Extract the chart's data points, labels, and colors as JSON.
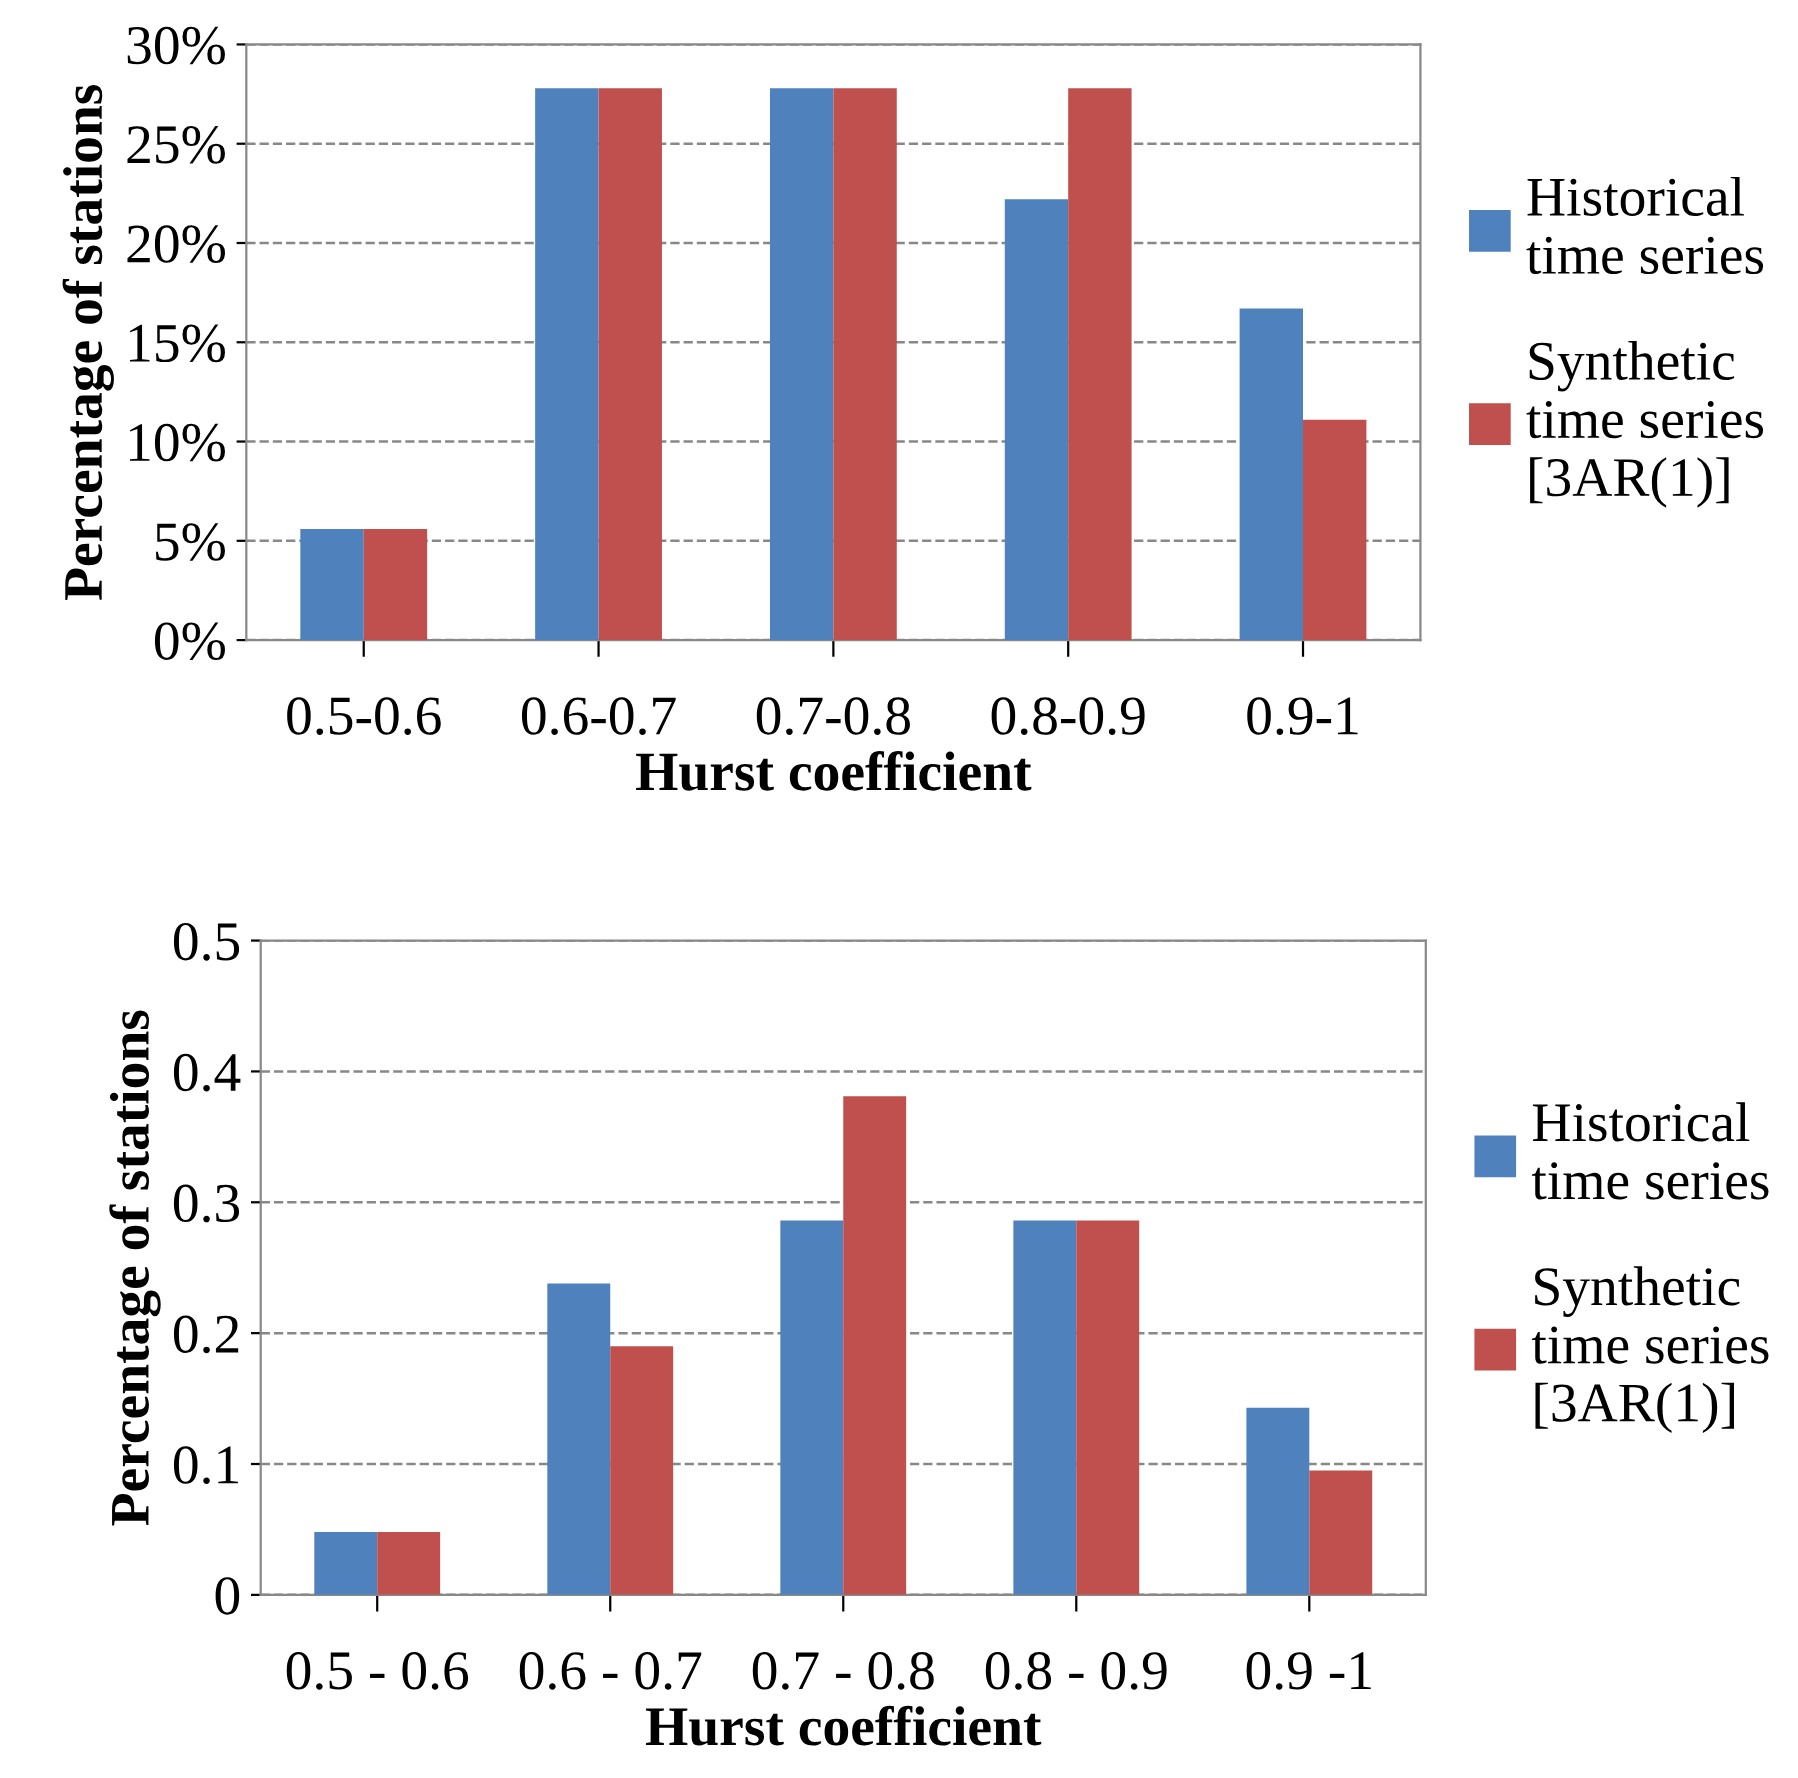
{
  "chart_data": [
    {
      "type": "bar",
      "xlabel": "Hurst coefficient",
      "ylabel": "Percentage of stations",
      "categories": [
        "0.5-0.6",
        "0.6-0.7",
        "0.7-0.8",
        "0.8-0.9",
        "0.9-1"
      ],
      "series": [
        {
          "name": "Historical\ntime series",
          "color": "#4f81bd",
          "values": [
            5.6,
            27.8,
            27.8,
            22.2,
            16.7
          ]
        },
        {
          "name": "Synthetic\ntime series\n[3AR(1)]",
          "color": "#c0504d",
          "values": [
            5.6,
            27.8,
            27.8,
            27.8,
            11.1
          ]
        }
      ],
      "ylim": [
        0,
        30
      ],
      "yticks": [
        {
          "value": 0,
          "label": "0%"
        },
        {
          "value": 5,
          "label": "5%"
        },
        {
          "value": 10,
          "label": "10%"
        },
        {
          "value": 15,
          "label": "15%"
        },
        {
          "value": 20,
          "label": "20%"
        },
        {
          "value": 25,
          "label": "25%"
        },
        {
          "value": 30,
          "label": "30%"
        }
      ],
      "grid": "y",
      "legend": "right"
    },
    {
      "type": "bar",
      "xlabel": "Hurst coefficient",
      "ylabel": "Percentage of stations",
      "categories": [
        "0.5 - 0.6",
        "0.6 - 0.7",
        "0.7 - 0.8",
        "0.8 - 0.9",
        "0.9 -1"
      ],
      "series": [
        {
          "name": "Historical\ntime series",
          "color": "#4f81bd",
          "values": [
            0.048,
            0.238,
            0.286,
            0.286,
            0.143
          ]
        },
        {
          "name": "Synthetic\ntime series\n[3AR(1)]",
          "color": "#c0504d",
          "values": [
            0.048,
            0.19,
            0.381,
            0.286,
            0.095
          ]
        }
      ],
      "ylim": [
        0,
        0.5
      ],
      "yticks": [
        0,
        0.1,
        0.2,
        0.3,
        0.4,
        0.5
      ],
      "grid": "y",
      "legend": "right"
    }
  ]
}
